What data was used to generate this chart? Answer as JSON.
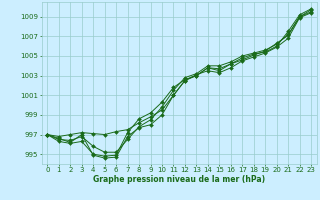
{
  "xlabel": "Graphe pression niveau de la mer (hPa)",
  "x": [
    0,
    1,
    2,
    3,
    4,
    5,
    6,
    7,
    8,
    9,
    10,
    11,
    12,
    13,
    14,
    15,
    16,
    17,
    18,
    19,
    20,
    21,
    22,
    23
  ],
  "lines": [
    [
      997.0,
      996.8,
      997.0,
      997.2,
      997.1,
      997.0,
      997.3,
      997.5,
      998.2,
      998.8,
      999.5,
      1001.0,
      1002.5,
      1003.0,
      1003.8,
      1003.7,
      1004.2,
      1004.6,
      1005.1,
      1005.5,
      1006.3,
      1007.1,
      1009.0,
      1009.7
    ],
    [
      997.0,
      996.5,
      996.4,
      996.8,
      995.8,
      995.2,
      995.2,
      996.5,
      997.8,
      998.5,
      999.8,
      1001.5,
      1002.8,
      1003.2,
      1004.0,
      1004.0,
      1004.4,
      1005.0,
      1005.3,
      1005.6,
      1006.2,
      1007.2,
      1009.0,
      1009.5
    ],
    [
      997.0,
      996.3,
      996.1,
      996.3,
      995.0,
      994.8,
      994.9,
      997.2,
      998.6,
      999.2,
      1000.3,
      1001.8,
      1002.6,
      1003.0,
      1003.8,
      1003.5,
      1004.2,
      1004.8,
      1005.2,
      1005.4,
      1006.0,
      1007.5,
      1009.2,
      1009.8
    ],
    [
      997.0,
      996.6,
      996.2,
      997.0,
      994.9,
      994.6,
      994.7,
      996.8,
      997.7,
      998.0,
      999.0,
      1001.0,
      1002.5,
      1003.1,
      1003.5,
      1003.3,
      1003.8,
      1004.5,
      1004.9,
      1005.3,
      1005.9,
      1006.8,
      1008.9,
      1009.4
    ]
  ],
  "line_color": "#1a6b1a",
  "marker": "D",
  "markersize": 2.0,
  "background_color": "#cceeff",
  "grid_color": "#99cccc",
  "tick_label_color": "#1a6b1a",
  "xlabel_color": "#1a6b1a",
  "ylim": [
    994.0,
    1010.5
  ],
  "yticks": [
    995,
    997,
    999,
    1001,
    1003,
    1005,
    1007,
    1009
  ],
  "xticks": [
    0,
    1,
    2,
    3,
    4,
    5,
    6,
    7,
    8,
    9,
    10,
    11,
    12,
    13,
    14,
    15,
    16,
    17,
    18,
    19,
    20,
    21,
    22,
    23
  ],
  "linewidth": 0.7,
  "linestyle": "-"
}
